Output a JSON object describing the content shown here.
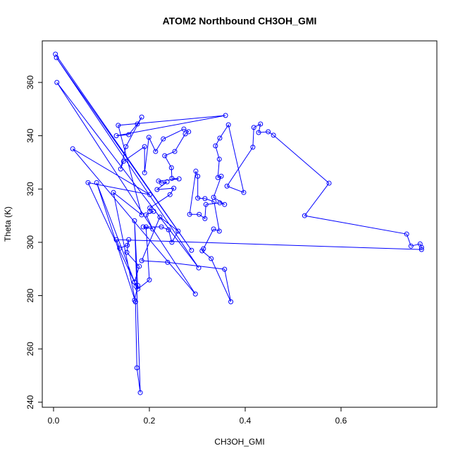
{
  "chart_data": {
    "type": "scatter",
    "lines": true,
    "title": "ATOM2 Northbound CH3OH_GMI",
    "x_label": "CH3OH_GMI",
    "y_label": "Theta (K)",
    "color": "#0000ff",
    "grid": false,
    "xlim": [
      -0.0235,
      0.8
    ],
    "ylim": [
      238.1,
      375.6
    ],
    "xticks": [
      {
        "value": 0,
        "label": "0.0"
      },
      0.2,
      0.4,
      0.6
    ],
    "yticks": [
      240,
      260,
      280,
      300,
      320,
      340,
      360
    ],
    "x": [
      0.004,
      0.288,
      0.006,
      0.303,
      0.007,
      0.296,
      0.04,
      0.201,
      0.072,
      0.169,
      0.09,
      0.171,
      0.125,
      0.184,
      0.135,
      0.359,
      0.131,
      0.157,
      0.175,
      0.184,
      0.151,
      0.14,
      0.146,
      0.19,
      0.19,
      0.199,
      0.213,
      0.229,
      0.272,
      0.282,
      0.275,
      0.253,
      0.232,
      0.246,
      0.247,
      0.262,
      0.219,
      0.226,
      0.237,
      0.216,
      0.251,
      0.243,
      0.201,
      0.201,
      0.209,
      0.193,
      0.207,
      0.187,
      0.225,
      0.24,
      0.247,
      0.26,
      0.222,
      0.184,
      0.238,
      0.357,
      0.37,
      0.329,
      0.31,
      0.313,
      0.334,
      0.346,
      0.335,
      0.316,
      0.301,
      0.301,
      0.297,
      0.284,
      0.304,
      0.316,
      0.318,
      0.347,
      0.357,
      0.334,
      0.35,
      0.343,
      0.346,
      0.338,
      0.347,
      0.365,
      0.397,
      0.362,
      0.416,
      0.418,
      0.432,
      0.428,
      0.448,
      0.459,
      0.575,
      0.524,
      0.737,
      0.746,
      0.765,
      0.768,
      0.768,
      0.131,
      0.138,
      0.154,
      0.157,
      0.153,
      0.179,
      0.169,
      0.172,
      0.176,
      0.169,
      0.171,
      0.174,
      0.181,
      0.169,
      0.176,
      0.2,
      0.193
    ],
    "y": [
      370.6,
      297,
      369.3,
      290.4,
      360,
      280.6,
      335.1,
      317.9,
      322.4,
      285.1,
      322.4,
      277.7,
      318.7,
      310.3,
      343.9,
      347.6,
      340,
      340.4,
      344.4,
      347,
      335.9,
      327.5,
      330.4,
      335.9,
      326.1,
      339.4,
      334.1,
      338.8,
      342.5,
      341.5,
      340.7,
      334.1,
      332.5,
      328,
      324,
      323.8,
      323,
      322.2,
      322.7,
      319.8,
      320.3,
      317.9,
      312.9,
      311.6,
      311.6,
      310.3,
      305,
      305.8,
      305.8,
      304.7,
      300,
      304.2,
      309.5,
      293.1,
      292.5,
      289.9,
      277.7,
      293.9,
      296.8,
      297.6,
      305,
      304.2,
      315.3,
      316.4,
      316.6,
      324.8,
      326.7,
      310.5,
      310.5,
      308.9,
      314.2,
      314.8,
      314.2,
      316.9,
      324.8,
      324.3,
      331.2,
      336.2,
      339.1,
      344.1,
      318.7,
      321.1,
      335.7,
      343.1,
      344.4,
      341.2,
      341.5,
      340.2,
      322.2,
      310,
      303.1,
      298.6,
      299.4,
      298.1,
      297.3,
      301,
      297.8,
      298.9,
      301,
      296.2,
      291,
      285.1,
      283.5,
      283.8,
      278.3,
      277.7,
      252.9,
      243.6,
      308.1,
      282.5,
      285.9,
      305.8
    ]
  }
}
